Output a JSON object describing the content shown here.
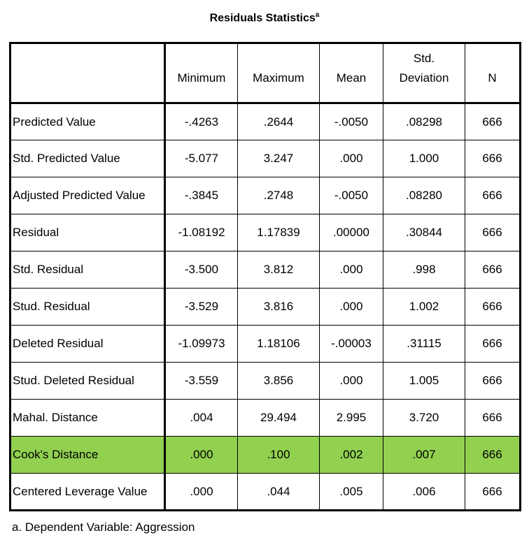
{
  "title": "Residuals Statistics",
  "title_superscript": "a",
  "columns": [
    "Minimum",
    "Maximum",
    "Mean",
    "Std.",
    "Deviation",
    "N"
  ],
  "rows": [
    {
      "label": "Predicted Value",
      "min": "-.4263",
      "max": ".2644",
      "mean": "-.0050",
      "sd": ".08298",
      "n": "666"
    },
    {
      "label": "Std. Predicted Value",
      "min": "-5.077",
      "max": "3.247",
      "mean": ".000",
      "sd": "1.000",
      "n": "666"
    },
    {
      "label": "Adjusted Predicted Value",
      "min": "-.3845",
      "max": ".2748",
      "mean": "-.0050",
      "sd": ".08280",
      "n": "666"
    },
    {
      "label": "Residual",
      "min": "-1.08192",
      "max": "1.17839",
      "mean": ".00000",
      "sd": ".30844",
      "n": "666"
    },
    {
      "label": "Std. Residual",
      "min": "-3.500",
      "max": "3.812",
      "mean": ".000",
      "sd": ".998",
      "n": "666"
    },
    {
      "label": "Stud. Residual",
      "min": "-3.529",
      "max": "3.816",
      "mean": ".000",
      "sd": "1.002",
      "n": "666"
    },
    {
      "label": "Deleted Residual",
      "min": "-1.09973",
      "max": "1.18106",
      "mean": "-.00003",
      "sd": ".31115",
      "n": "666"
    },
    {
      "label": "Stud. Deleted Residual",
      "min": "-3.559",
      "max": "3.856",
      "mean": ".000",
      "sd": "1.005",
      "n": "666"
    },
    {
      "label": "Mahal. Distance",
      "min": ".004",
      "max": "29.494",
      "mean": "2.995",
      "sd": "3.720",
      "n": "666"
    },
    {
      "label": "Cook's Distance",
      "min": ".000",
      "max": ".100",
      "mean": ".002",
      "sd": ".007",
      "n": "666"
    },
    {
      "label": "Centered Leverage Value",
      "min": ".000",
      "max": ".044",
      "mean": ".005",
      "sd": ".006",
      "n": "666"
    }
  ],
  "highlight_color": "#92d050",
  "footnote": "a. Dependent Variable: Aggression"
}
